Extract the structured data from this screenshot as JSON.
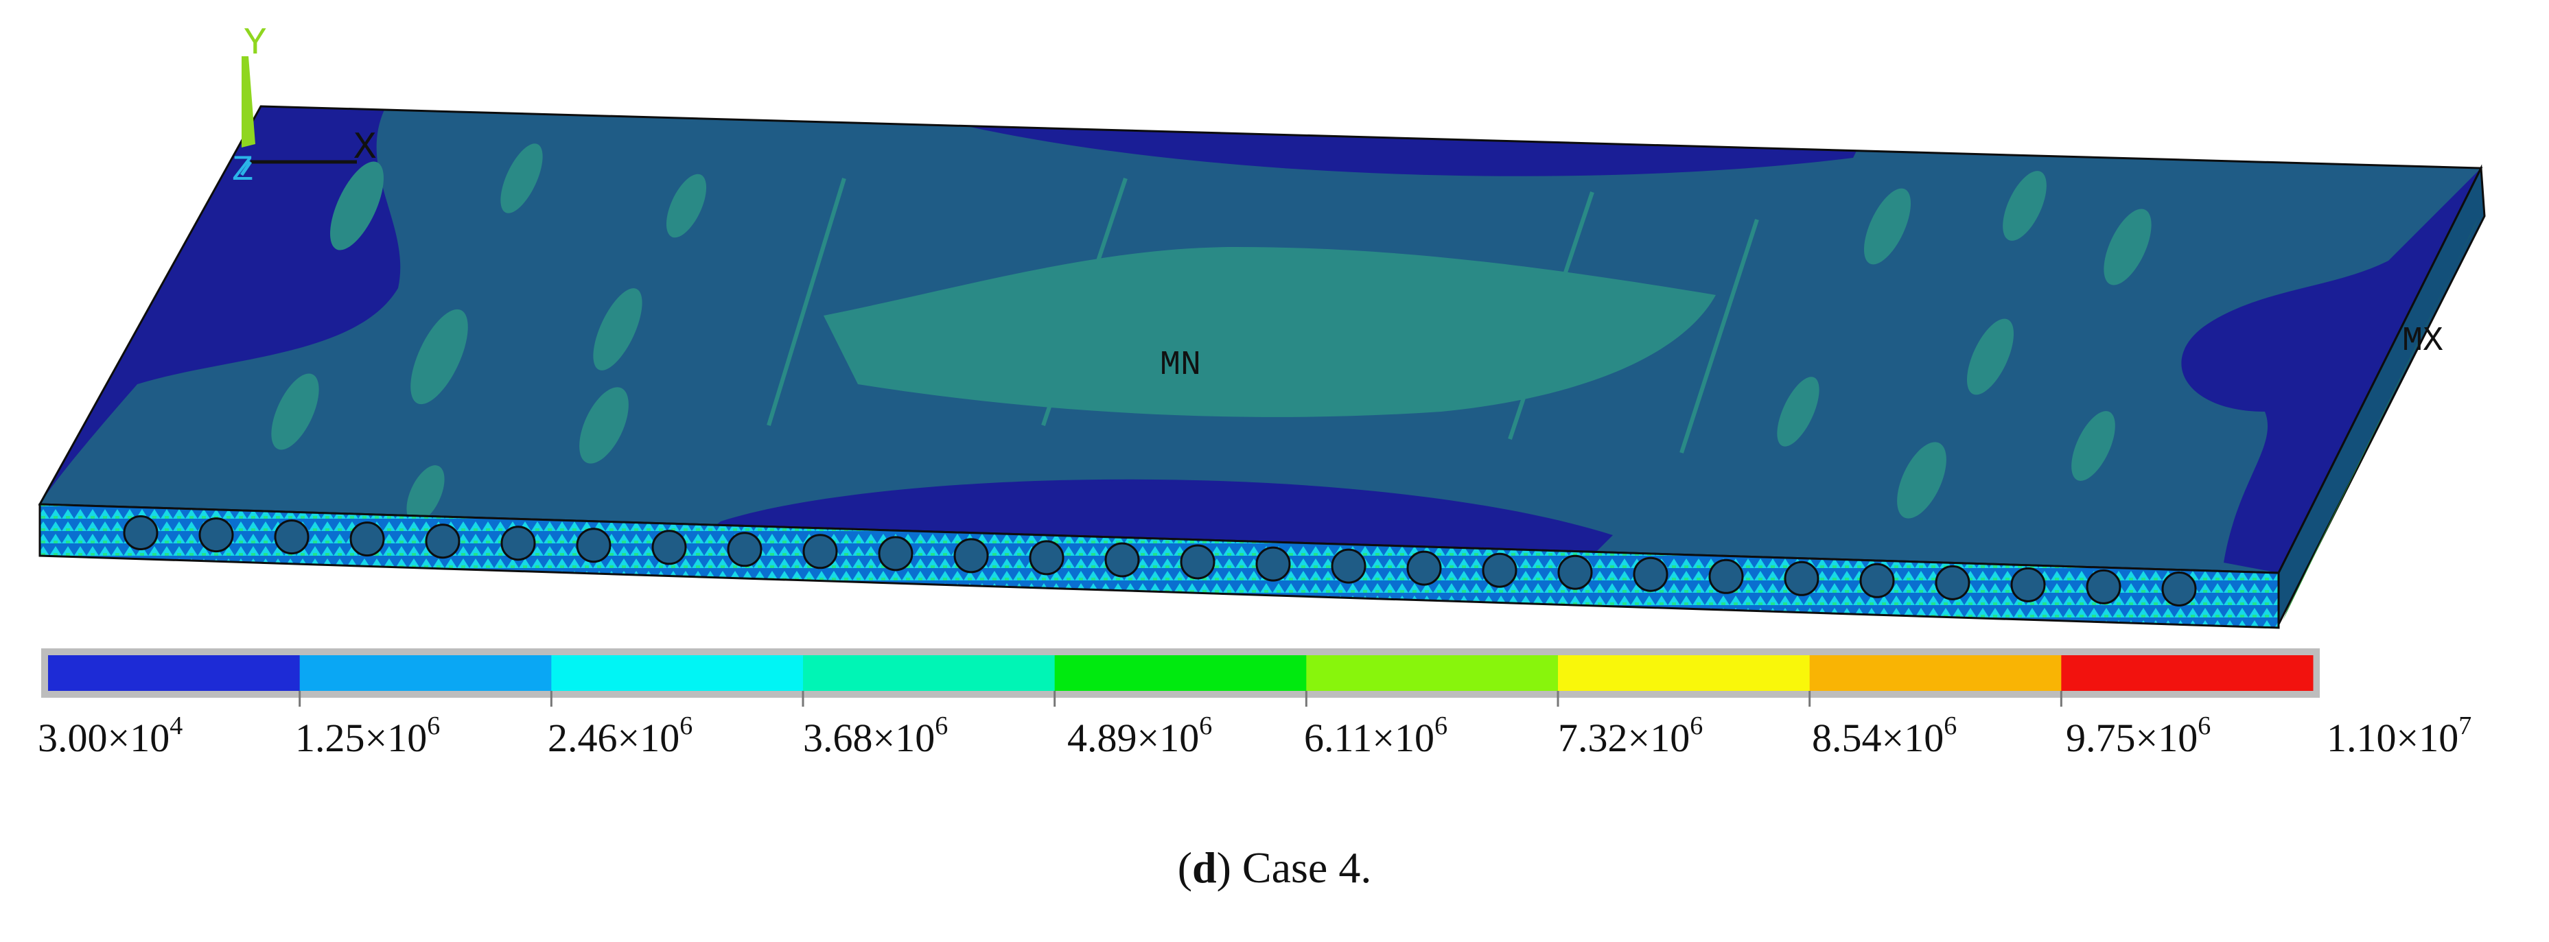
{
  "figure": {
    "triad": {
      "y_label": "Y",
      "x_label": "X",
      "z_label": "Z"
    },
    "markers": {
      "min_label": "MN",
      "max_label": "MX"
    },
    "colors": {
      "plate_base": "#1f5c86",
      "plate_dark": "#1a1e96",
      "plate_light": "#2a8a86",
      "bottom_edge": "#0d0d0d",
      "side_face": "#13507a"
    }
  },
  "legend": {
    "bands": [
      "#1d2bd6",
      "#0aa7f4",
      "#00f5f5",
      "#00f5b5",
      "#00ea0f",
      "#88f50c",
      "#f9f70a",
      "#f9b404",
      "#f2120e"
    ],
    "labels": [
      {
        "mantissa": "3.00×10",
        "exp": "4"
      },
      {
        "mantissa": "1.25×10",
        "exp": "6"
      },
      {
        "mantissa": "2.46×10",
        "exp": "6"
      },
      {
        "mantissa": "3.68×10",
        "exp": "6"
      },
      {
        "mantissa": "4.89×10",
        "exp": "6"
      },
      {
        "mantissa": "6.11×10",
        "exp": "6"
      },
      {
        "mantissa": "7.32×10",
        "exp": "6"
      },
      {
        "mantissa": "8.54×10",
        "exp": "6"
      },
      {
        "mantissa": "9.75×10",
        "exp": "6"
      },
      {
        "mantissa": "1.10×10",
        "exp": "7"
      }
    ]
  },
  "caption": {
    "letter": "d",
    "paren_open": "(",
    "paren_close": ")",
    "text": " Case 4."
  }
}
